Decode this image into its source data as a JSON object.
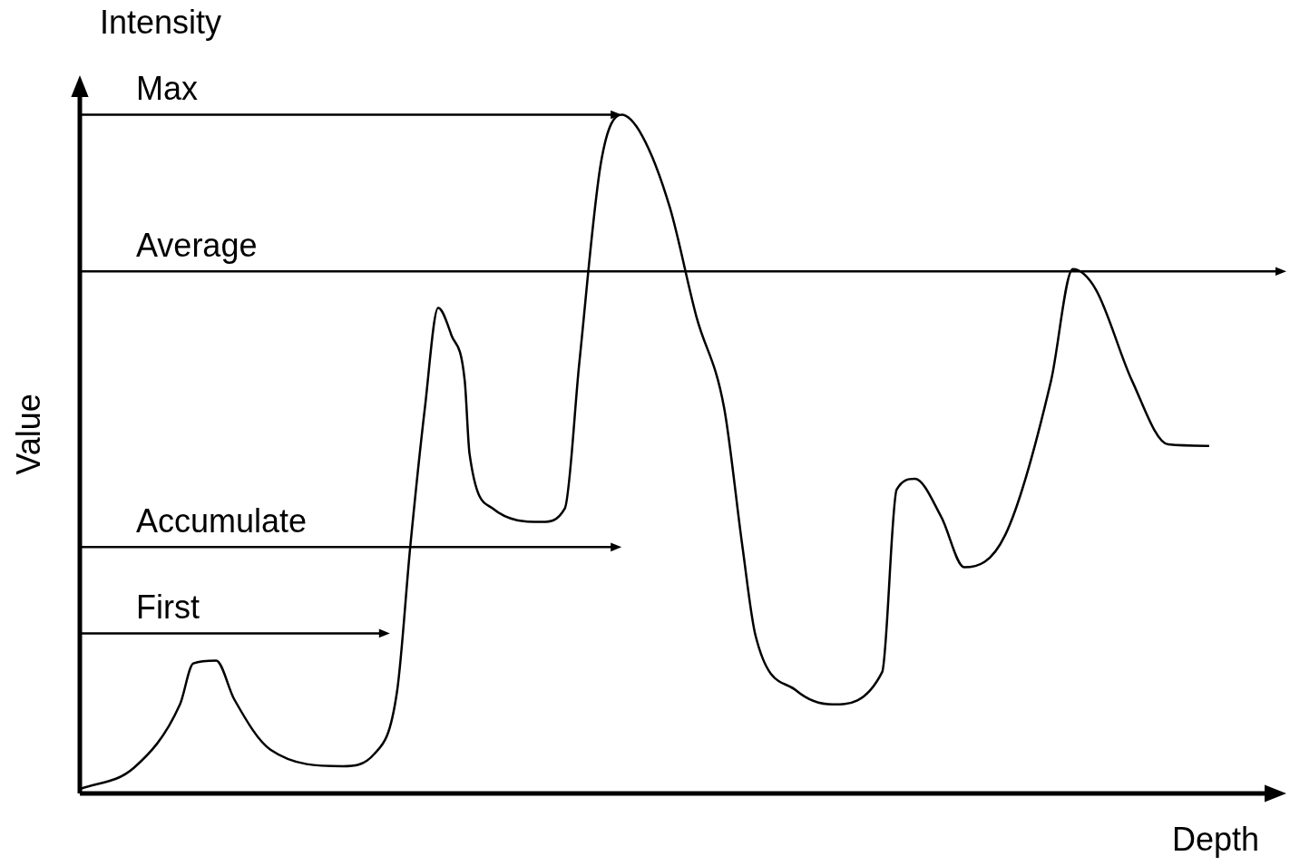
{
  "chart_data": {
    "type": "line",
    "title": "Intensity",
    "x_label": "Depth",
    "y_label": "Value",
    "x": [
      0,
      4.5,
      8.3,
      9.4,
      11.3,
      12.8,
      15.8,
      21.8,
      24.4,
      26.3,
      27.4,
      28.6,
      29.7,
      30.8,
      31.9,
      32.3,
      34.2,
      38.3,
      40.2,
      41.4,
      43.2,
      44.9,
      46.6,
      48.9,
      51.1,
      53.4,
      54.9,
      56.0,
      59.4,
      62.4,
      66.5,
      67.7,
      69.2,
      71.4,
      73.3,
      76.7,
      80.5,
      82.3,
      84.2,
      87.2,
      90.2,
      93.6
    ],
    "values": [
      0.6,
      3.6,
      12.4,
      18.1,
      18.5,
      13.1,
      6.1,
      3.8,
      5.5,
      14.3,
      34.6,
      53.7,
      67.6,
      63.8,
      57.5,
      47.3,
      39.7,
      37.8,
      39.7,
      60.0,
      87.9,
      94.5,
      91.6,
      81.6,
      66.4,
      53.7,
      34.6,
      22.0,
      14.3,
      12.4,
      16.9,
      42.3,
      43.8,
      38.5,
      31.5,
      36.0,
      57.5,
      73.0,
      70.2,
      57.5,
      48.6,
      48.4
    ],
    "color": "#000000",
    "xlim": [
      0,
      100
    ],
    "ylim": [
      0,
      100
    ],
    "grid": false,
    "tick_labels": false,
    "annotations": [
      {
        "text": "Max",
        "y": 94.5,
        "x_end": 44.9
      },
      {
        "text": "Average",
        "y": 72.7,
        "x_end": 100
      },
      {
        "text": "Accumulate",
        "y": 34.3,
        "x_end": 44.9
      },
      {
        "text": "First",
        "y": 22.3,
        "x_end": 25.7
      }
    ]
  }
}
